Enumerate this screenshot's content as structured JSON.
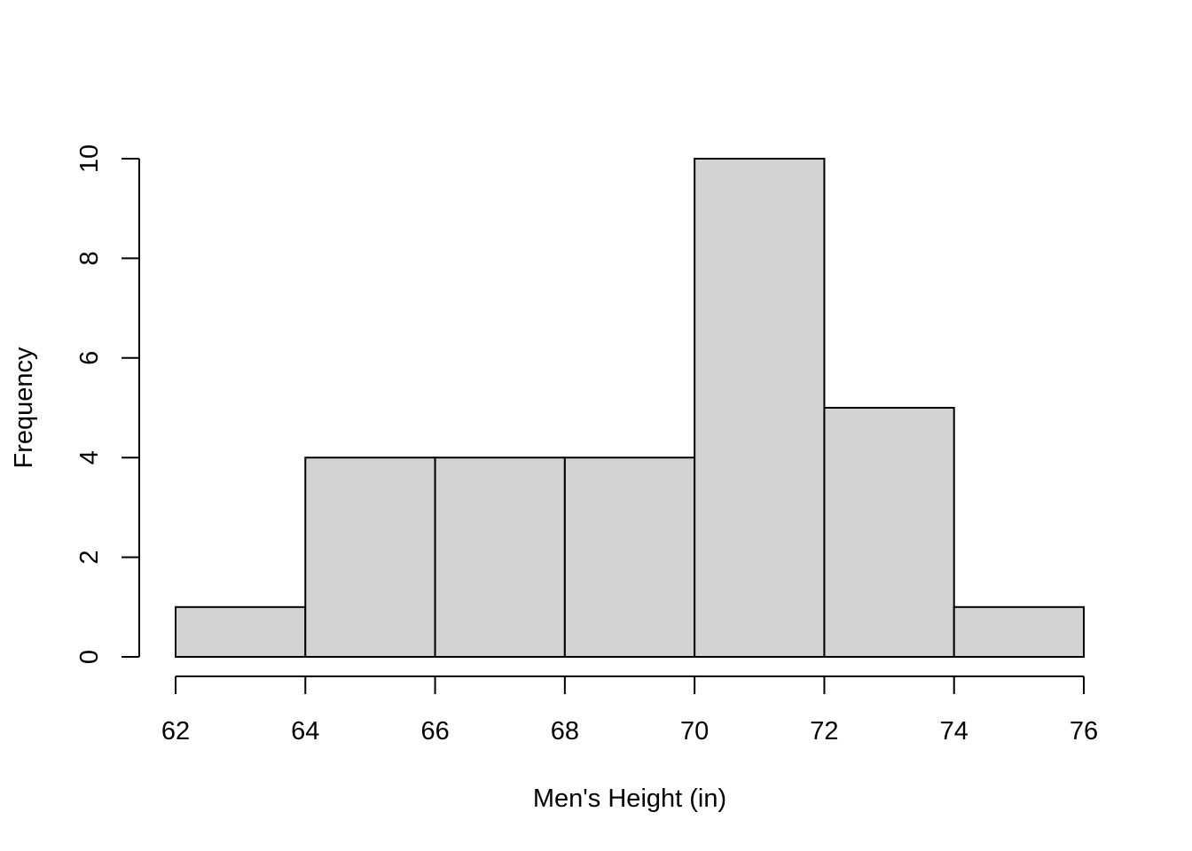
{
  "chart_data": {
    "type": "bar",
    "subtype": "histogram",
    "title": "",
    "xlabel": "Men's Height (in)",
    "ylabel": "Frequency",
    "bins": [
      {
        "start": 62,
        "end": 64,
        "count": 1
      },
      {
        "start": 64,
        "end": 66,
        "count": 4
      },
      {
        "start": 66,
        "end": 68,
        "count": 4
      },
      {
        "start": 68,
        "end": 70,
        "count": 4
      },
      {
        "start": 70,
        "end": 72,
        "count": 10
      },
      {
        "start": 72,
        "end": 74,
        "count": 5
      },
      {
        "start": 74,
        "end": 76,
        "count": 1
      }
    ],
    "xlim": [
      62,
      76
    ],
    "ylim": [
      0,
      10
    ],
    "x_ticks": [
      62,
      64,
      66,
      68,
      70,
      72,
      74,
      76
    ],
    "y_ticks": [
      0,
      2,
      4,
      6,
      8,
      10
    ],
    "grid": false,
    "legend": "none",
    "colors": {
      "bar_fill": "#d3d3d3",
      "bar_stroke": "#000000",
      "background": "#ffffff"
    }
  }
}
